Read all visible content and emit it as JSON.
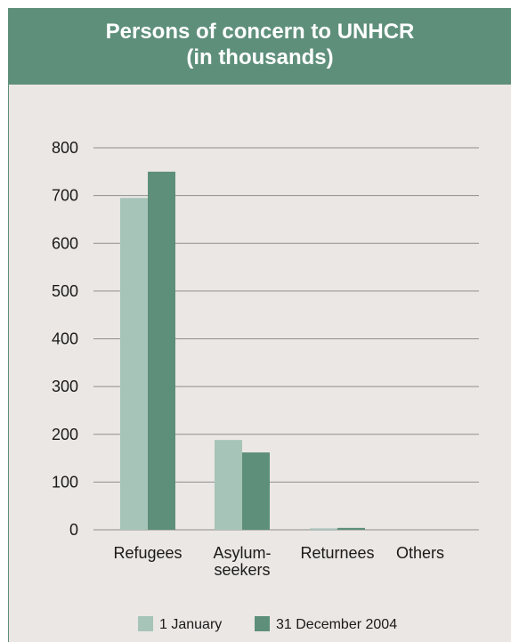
{
  "chart_data": {
    "type": "bar",
    "title": "Persons of concern to UNHCR",
    "subtitle": "(in thousands)",
    "xlabel": "",
    "ylabel": "",
    "ylim": [
      0,
      800
    ],
    "yticks": [
      0,
      100,
      200,
      300,
      400,
      500,
      600,
      700,
      800
    ],
    "grid": true,
    "legend_position": "bottom-center",
    "categories": [
      [
        "Refugees"
      ],
      [
        "Asylum-",
        "seekers"
      ],
      [
        "Returnees"
      ],
      [
        "Others"
      ]
    ],
    "series": [
      {
        "name": "1 January",
        "color": "#a7c4b9",
        "values": [
          695,
          188,
          3,
          0
        ]
      },
      {
        "name": "31 December 2004",
        "color": "#5e8f7b",
        "values": [
          750,
          162,
          4,
          0
        ]
      }
    ]
  }
}
